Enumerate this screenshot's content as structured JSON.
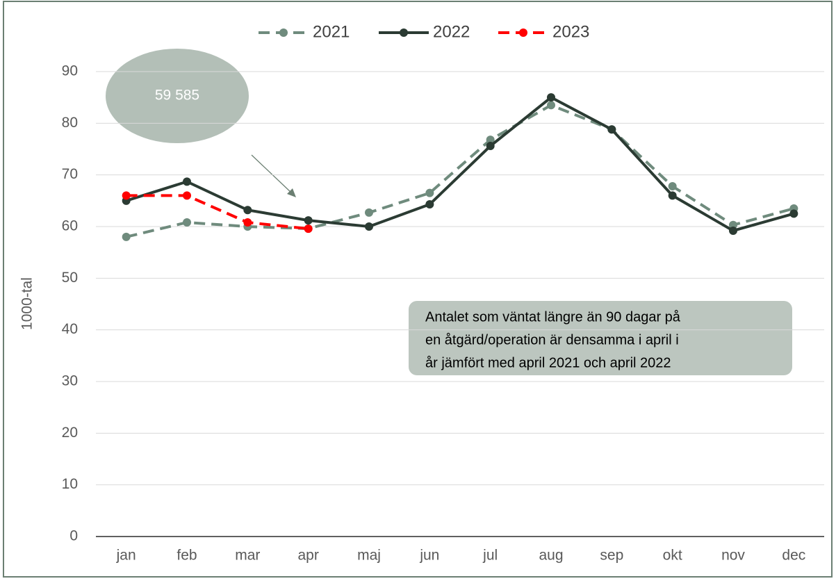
{
  "chart_data": {
    "type": "line",
    "y_label": "1000-tal",
    "categories": [
      "jan",
      "feb",
      "mar",
      "apr",
      "maj",
      "jun",
      "jul",
      "aug",
      "sep",
      "okt",
      "nov",
      "dec"
    ],
    "series": [
      {
        "name": "2021",
        "color": "#6f8b7d",
        "dash": true,
        "values": [
          58,
          60.8,
          60,
          59.6,
          62.7,
          66.5,
          76.8,
          83.5,
          78.8,
          67.8,
          60.3,
          63.5
        ]
      },
      {
        "name": "2022",
        "color": "#2b3b33",
        "dash": false,
        "values": [
          65,
          68.7,
          63.2,
          61.2,
          60,
          64.3,
          75.6,
          85,
          78.8,
          66,
          59.2,
          62.5
        ]
      },
      {
        "name": "2023",
        "color": "#ff0000",
        "dash": true,
        "values": [
          66,
          66,
          60.8,
          59.585,
          null,
          null,
          null,
          null,
          null,
          null,
          null,
          null
        ]
      }
    ],
    "ylim": [
      0,
      90
    ],
    "yticks": [
      0,
      10,
      20,
      30,
      40,
      50,
      60,
      70,
      80,
      90
    ],
    "grid": true,
    "legend": "top",
    "callout": "59 585",
    "note_lines": [
      "Antalet som väntat längre än 90 dagar på",
      "en åtgärd/operation är densamma i april i",
      "år jämfört med april 2021 och april 2022"
    ]
  }
}
